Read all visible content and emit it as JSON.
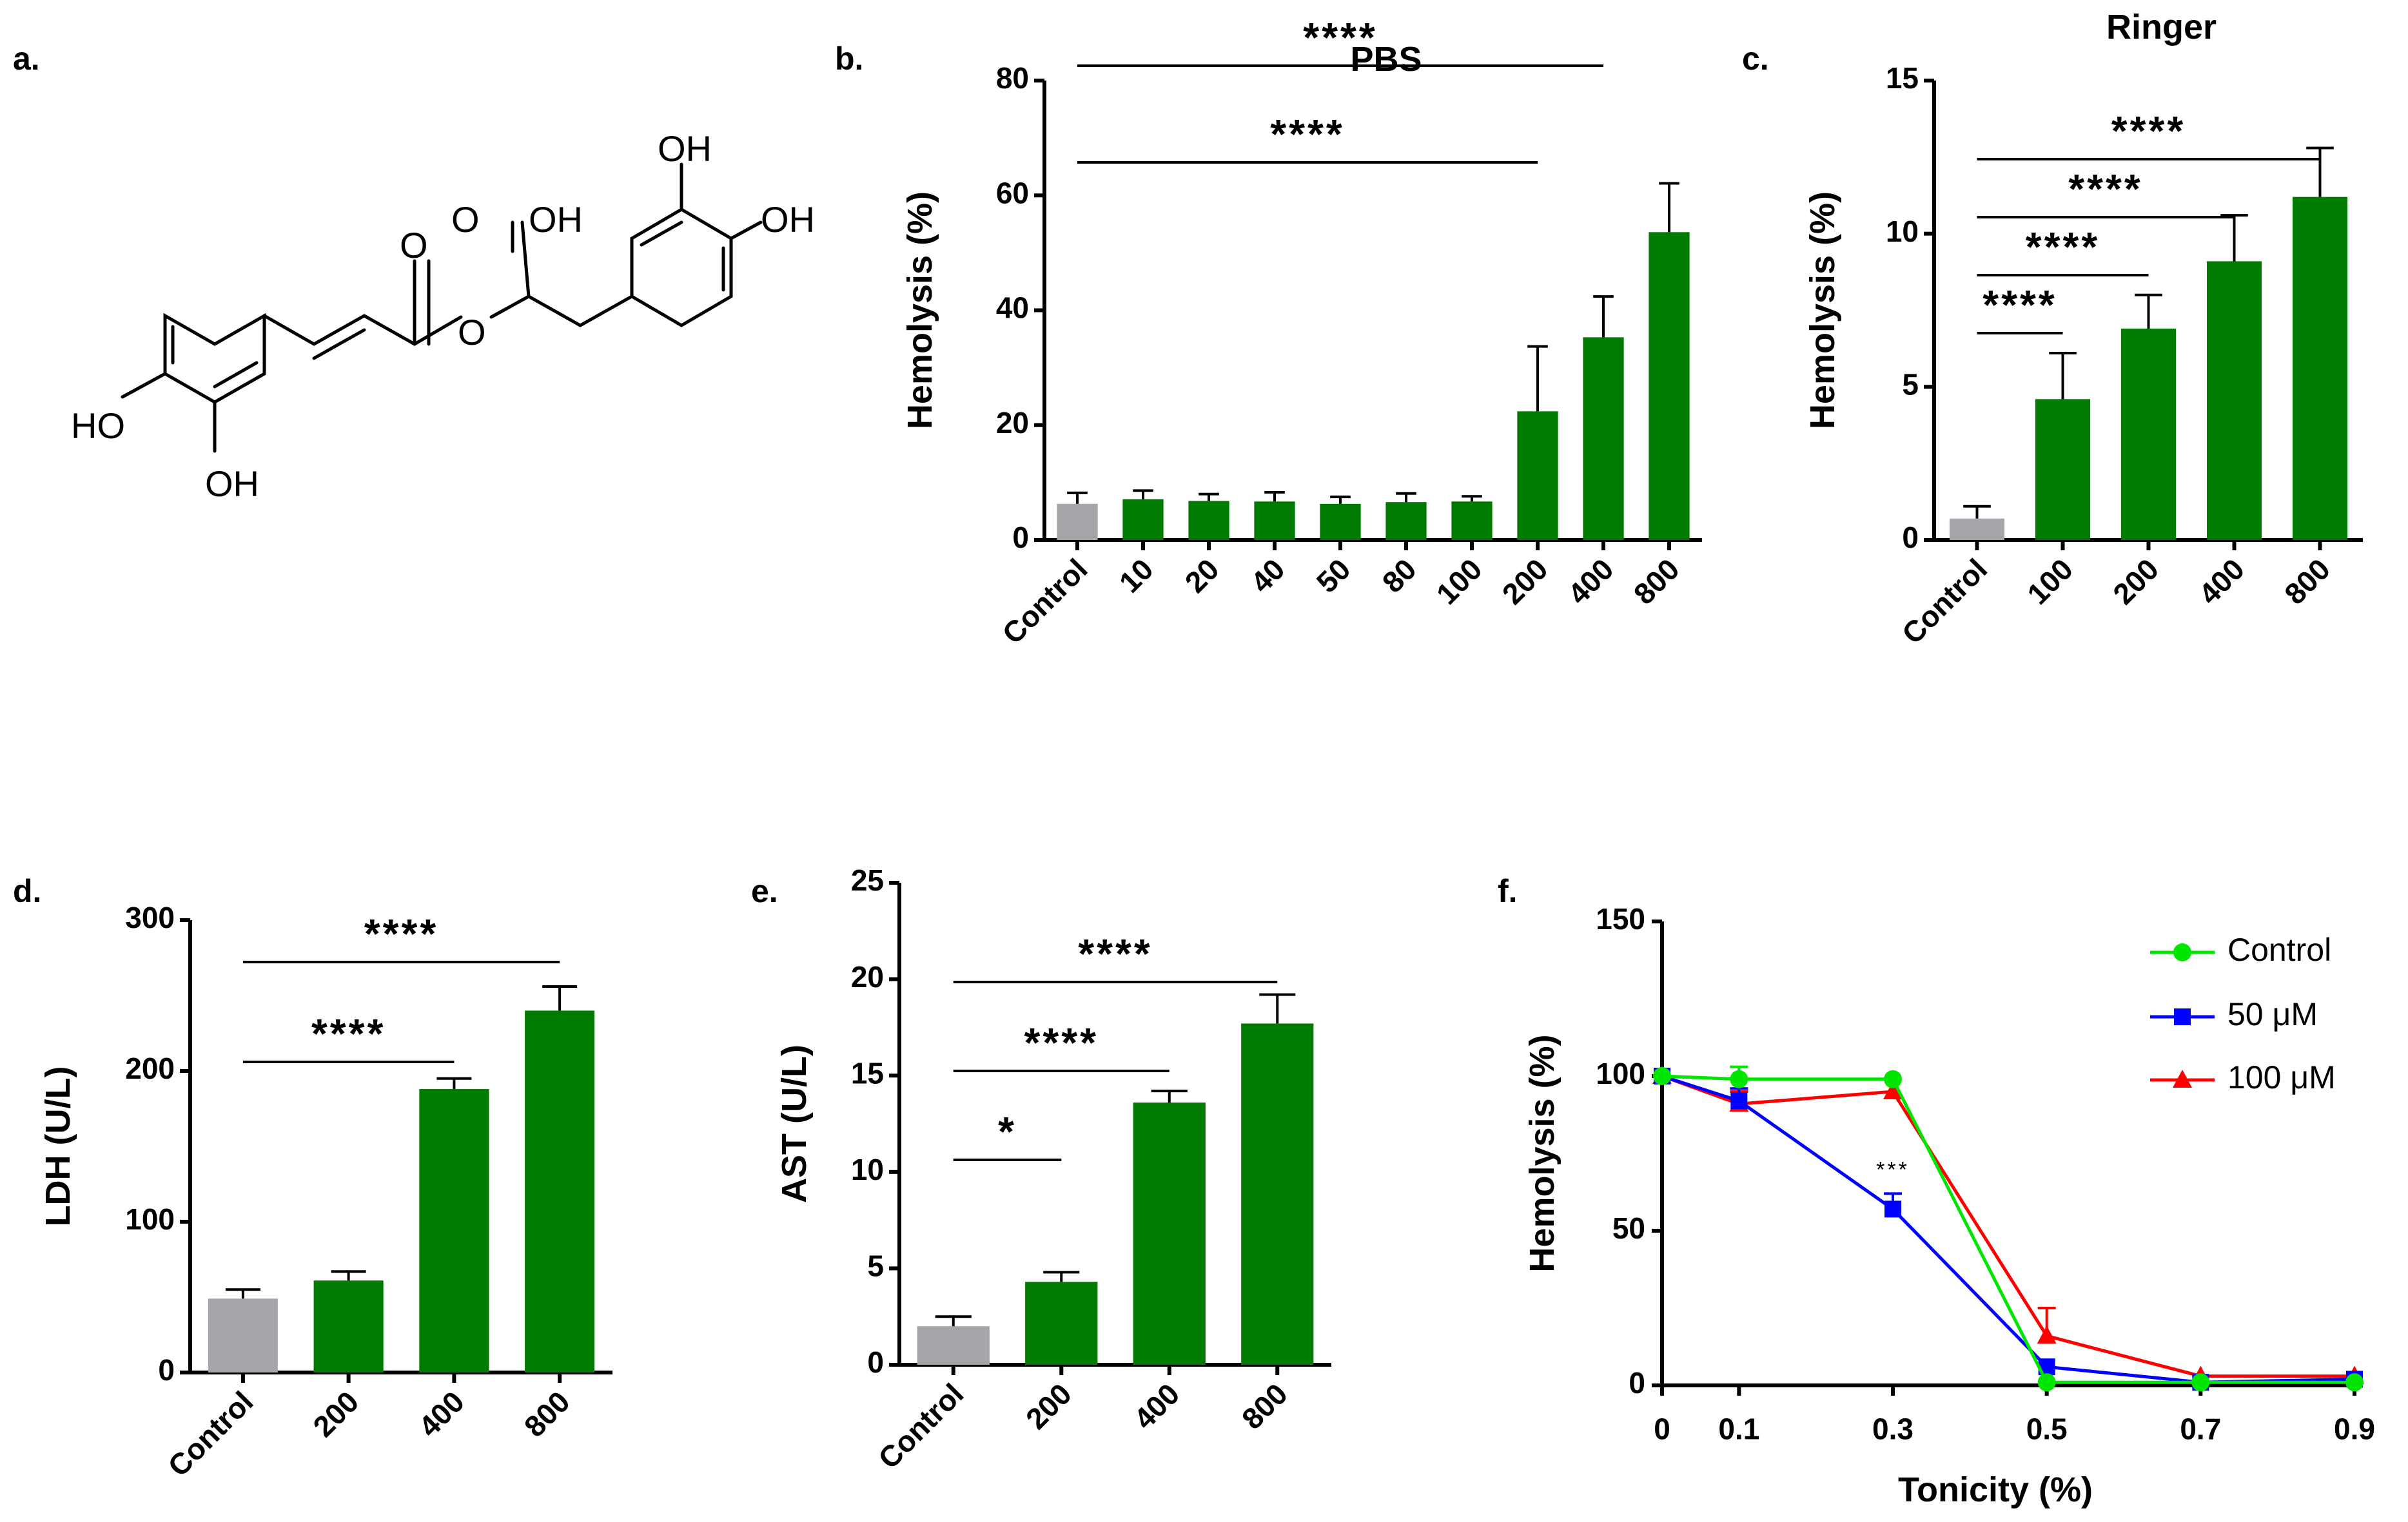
{
  "panel_labels": [
    "a.",
    "b.",
    "c.",
    "d.",
    "e.",
    "f."
  ],
  "structure": {
    "atoms": [
      "OH",
      "OH",
      "O",
      "OH",
      "O",
      "O",
      "HO",
      "OH"
    ]
  },
  "colors": {
    "control": "#a5a5aa",
    "treated": "#007a00",
    "line_control": "#00e600",
    "line_50": "#0000ff",
    "line_100": "#ff0000"
  },
  "chart_data": [
    {
      "id": "b",
      "type": "bar",
      "title": "PBS",
      "xlabel": "",
      "ylabel": "Hemolysis (%)",
      "ylim": [
        0,
        80
      ],
      "yticks": [
        "0",
        "20",
        "40",
        "60",
        "80"
      ],
      "categories": [
        "Control",
        "10",
        "20",
        "40",
        "50",
        "80",
        "100",
        "200",
        "400",
        "800"
      ],
      "values": [
        6.3,
        7.1,
        6.8,
        6.7,
        6.3,
        6.6,
        6.7,
        22.4,
        35.3,
        53.6
      ],
      "errors": [
        1.9,
        1.5,
        1.2,
        1.6,
        1.2,
        1.5,
        0.9,
        11.3,
        7.1,
        8.5
      ],
      "significance": [
        {
          "from": "Control",
          "to": "200",
          "label": "****"
        },
        {
          "from": "Control",
          "to": "400",
          "label": "****"
        },
        {
          "from": "Control",
          "to": "800",
          "label": "****"
        }
      ]
    },
    {
      "id": "c",
      "type": "bar",
      "title": "Ringer",
      "xlabel": "",
      "ylabel": "Hemolysis (%)",
      "ylim": [
        0,
        15
      ],
      "yticks": [
        "0",
        "5",
        "10",
        "15"
      ],
      "categories": [
        "Control",
        "100",
        "200",
        "400",
        "800"
      ],
      "values": [
        0.7,
        4.6,
        6.9,
        9.1,
        11.2
      ],
      "errors": [
        0.4,
        1.5,
        1.1,
        1.5,
        1.6
      ],
      "significance": [
        {
          "from": "Control",
          "to": "100",
          "label": "****"
        },
        {
          "from": "Control",
          "to": "200",
          "label": "****"
        },
        {
          "from": "Control",
          "to": "400",
          "label": "****"
        },
        {
          "from": "Control",
          "to": "800",
          "label": "****"
        }
      ]
    },
    {
      "id": "d",
      "type": "bar",
      "title": "",
      "xlabel": "",
      "ylabel": "LDH (U/L)",
      "ylim": [
        0,
        300
      ],
      "yticks": [
        "0",
        "100",
        "200",
        "300"
      ],
      "categories": [
        "Control",
        "200",
        "400",
        "800"
      ],
      "values": [
        49,
        61,
        188,
        240
      ],
      "errors": [
        6,
        6,
        7,
        16
      ],
      "significance": [
        {
          "from": "Control",
          "to": "400",
          "label": "****"
        },
        {
          "from": "Control",
          "to": "800",
          "label": "****"
        }
      ]
    },
    {
      "id": "e",
      "type": "bar",
      "title": "",
      "xlabel": "",
      "ylabel": "AST (U/L)",
      "ylim": [
        0,
        25
      ],
      "yticks": [
        "0",
        "5",
        "10",
        "15",
        "20",
        "25"
      ],
      "categories": [
        "Control",
        "200",
        "400",
        "800"
      ],
      "values": [
        2.0,
        4.3,
        13.6,
        17.7
      ],
      "errors": [
        0.5,
        0.5,
        0.6,
        1.5
      ],
      "significance": [
        {
          "from": "Control",
          "to": "200",
          "label": "*"
        },
        {
          "from": "Control",
          "to": "400",
          "label": "****"
        },
        {
          "from": "Control",
          "to": "800",
          "label": "****"
        }
      ]
    },
    {
      "id": "f",
      "type": "line",
      "title": "",
      "xlabel": "Tonicity (%)",
      "ylabel": "Hemolysis (%)",
      "xlim": [
        0,
        0.9
      ],
      "ylim": [
        0,
        150
      ],
      "xticks": [
        "0",
        "0.1",
        "0.3",
        "0.5",
        "0.7",
        "0.9"
      ],
      "yticks": [
        "0",
        "50",
        "100",
        "150"
      ],
      "x": [
        0,
        0.1,
        0.3,
        0.5,
        0.7,
        0.9
      ],
      "series": [
        {
          "name": "Control",
          "marker": "circle",
          "values": [
            100,
            99,
            99,
            1,
            1,
            1
          ],
          "errors": [
            0,
            4,
            0,
            0,
            0,
            0
          ]
        },
        {
          "name": "50 μM",
          "marker": "square",
          "values": [
            100,
            92,
            57,
            6,
            1,
            2
          ],
          "errors": [
            0,
            4,
            5,
            0,
            0,
            0
          ]
        },
        {
          "name": "100 μM",
          "marker": "triangle",
          "values": [
            100,
            91,
            95,
            16,
            3,
            3
          ],
          "errors": [
            0,
            4,
            0,
            9,
            0,
            0
          ]
        }
      ],
      "annotations": [
        {
          "x": 0.3,
          "label": "***"
        }
      ],
      "legend": "top-right"
    }
  ]
}
